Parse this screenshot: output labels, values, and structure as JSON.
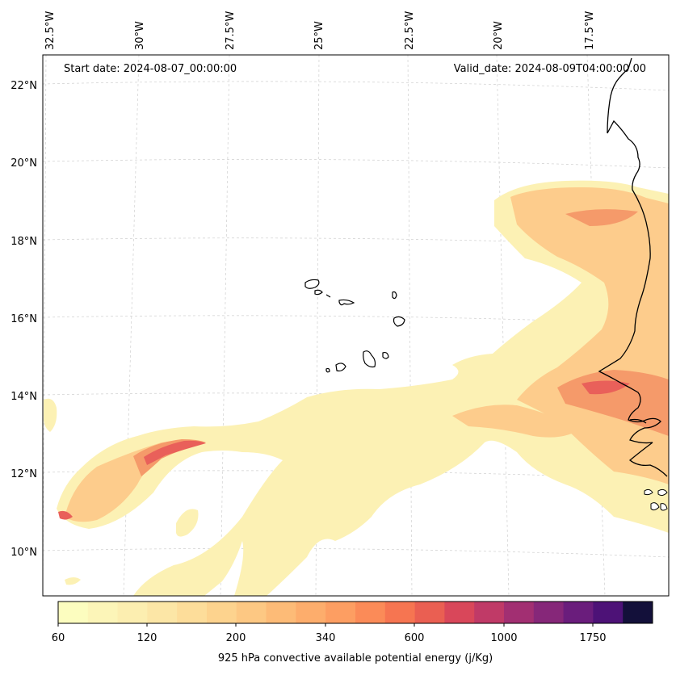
{
  "header": {
    "start_date": "Start date: 2024-08-07_00:00:00",
    "valid_date": "Valid_date: 2024-08-09T04:00:00.00"
  },
  "axes": {
    "lon_labels": [
      "32.5°W",
      "30°W",
      "27.5°W",
      "25°W",
      "22.5°W",
      "20°W",
      "17.5°W"
    ],
    "lat_labels": [
      "22°N",
      "20°N",
      "18°N",
      "16°N",
      "14°N",
      "12°N",
      "10°N"
    ]
  },
  "colorbar": {
    "title": "925 hPa convective available potential energy (j/Kg)",
    "tick_labels": [
      "60",
      "120",
      "200",
      "340",
      "600",
      "1000",
      "1750"
    ],
    "colors": [
      "#fcfdbf",
      "#fcf5b8",
      "#fceeb0",
      "#fce6a6",
      "#fddd9a",
      "#fdd38e",
      "#fdc883",
      "#fdbb77",
      "#fdad6c",
      "#fd9e62",
      "#fb8b58",
      "#f67551",
      "#ea5f52",
      "#d9475a",
      "#c03a67",
      "#a22f72",
      "#862779",
      "#6a1d7c",
      "#4d1277",
      "#13103a"
    ]
  },
  "colors": {
    "coastline": "#000000",
    "gridline": "#cccccc",
    "cape_low": "#fcf1b4",
    "cape_mid": "#fdc48a",
    "cape_high": "#e9605a"
  }
}
